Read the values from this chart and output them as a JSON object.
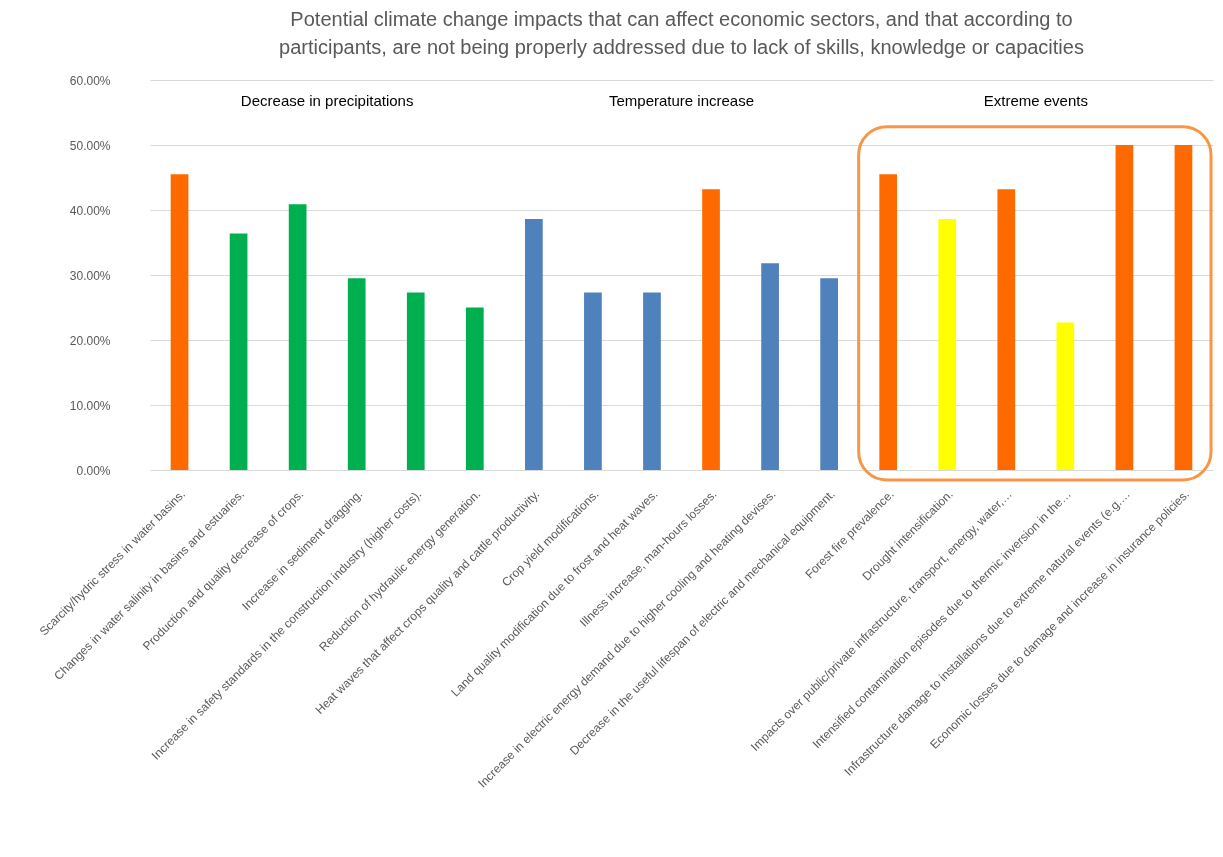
{
  "chart_data": {
    "type": "bar",
    "title": "Potential climate change impacts that can affect economic sectors, and that according to participants, are not being properly addressed due to lack of skills, knowledge or capacities",
    "categories": [
      "Scarcity/hydric stress in water basins.",
      "Changes in water salinity in basins and estuaries.",
      "Production and quality decrease of crops.",
      "Increase in sediment dragging.",
      "Increase in safety standards in the construction industry (higher costs).",
      "Reduction of hydraulic energy generation.",
      "Heat waves that affect crops quality and cattle productivity.",
      "Crop yield modifications.",
      "Land quality modification due to frost and heat waves.",
      "Illness increase, man-hours losses.",
      "Increase in electric energy demand due to higher cooling and heating devises.",
      "Decrease in the useful lifespan of electric and mechanical equipment.",
      "Forest fire prevalence.",
      "Drought intensification.",
      "Impacts over public/private infrastructure, transport, energy, water,…",
      "Intensified contamination episodes due to thermic inversion in the…",
      "Infrastructure damage to installations due to extreme natural events (e.g.…",
      "Economic losses due to damage and increase in insurance policies."
    ],
    "values": [
      45.5,
      36.4,
      40.9,
      29.5,
      27.3,
      25.0,
      38.6,
      27.3,
      27.3,
      43.2,
      31.8,
      29.5,
      45.5,
      38.6,
      43.2,
      22.7,
      50,
      50
    ],
    "colors": [
      "#ff6a00",
      "#00b050",
      "#00b050",
      "#00b050",
      "#00b050",
      "#00b050",
      "#4f81bd",
      "#4f81bd",
      "#4f81bd",
      "#ff6a00",
      "#4f81bd",
      "#4f81bd",
      "#ff6a00",
      "#ffff00",
      "#ff6a00",
      "#ffff00",
      "#ff6a00",
      "#ff6a00"
    ],
    "ylim": [
      0,
      60
    ],
    "yticks": [
      {
        "value": 0,
        "label": "0.00%"
      },
      {
        "value": 10,
        "label": "10.00%"
      },
      {
        "value": 20,
        "label": "20.00%"
      },
      {
        "value": 30,
        "label": "30.00%"
      },
      {
        "value": 40,
        "label": "40.00%"
      },
      {
        "value": 50,
        "label": "50.00%"
      },
      {
        "value": 60,
        "label": "60.00%"
      }
    ],
    "grid": "y",
    "annotations": [
      "Decrease in precipitations",
      "Temperature increase",
      "Extreme events"
    ]
  }
}
